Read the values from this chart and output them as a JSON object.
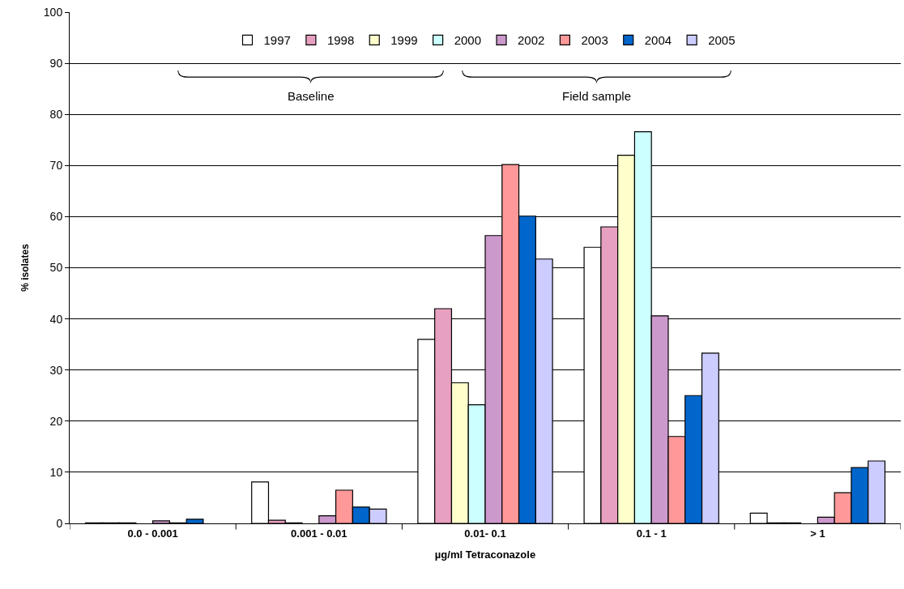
{
  "chart_data": {
    "type": "bar",
    "xlabel": "µg/ml Tetraconazole",
    "ylabel": "% isolates",
    "categories": [
      "0.0 - 0.001",
      "0.001 - 0.01",
      "0.01- 0.1",
      "0.1 - 1",
      "> 1"
    ],
    "series": [
      {
        "name": "1997",
        "color": "#ffffff",
        "values": [
          0.1,
          8.1,
          36,
          54,
          2.0
        ]
      },
      {
        "name": "1998",
        "color": "#e8a0c0",
        "values": [
          0.1,
          0.6,
          42,
          58,
          0.1
        ]
      },
      {
        "name": "1999",
        "color": "#ffffcc",
        "values": [
          0.1,
          0.1,
          27.5,
          72,
          0.1
        ]
      },
      {
        "name": "2000",
        "color": "#ccffff",
        "values": [
          null,
          null,
          23.2,
          76.6,
          null
        ]
      },
      {
        "name": "2002",
        "color": "#cc99cc",
        "values": [
          0.5,
          1.5,
          56.3,
          40.6,
          1.2
        ]
      },
      {
        "name": "2003",
        "color": "#ff9999",
        "values": [
          0.1,
          6.5,
          70.2,
          17,
          6.0
        ]
      },
      {
        "name": "2004",
        "color": "#0066cc",
        "values": [
          0.8,
          3.2,
          60.1,
          25,
          10.9
        ]
      },
      {
        "name": "2005",
        "color": "#ccccff",
        "values": [
          null,
          2.8,
          51.7,
          33.3,
          12.2
        ]
      }
    ],
    "ylim": [
      0,
      100
    ],
    "yticks": [
      0,
      10,
      20,
      30,
      40,
      50,
      60,
      70,
      80,
      90,
      100
    ],
    "grid": "y",
    "legend": "top",
    "annotations": [
      "Baseline",
      "Field sample"
    ]
  }
}
